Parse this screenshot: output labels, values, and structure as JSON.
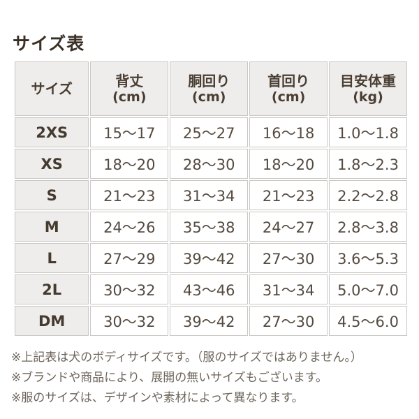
{
  "chart_data": {
    "type": "table",
    "title": "サイズ表",
    "columns": [
      {
        "label": "サイズ",
        "unit": ""
      },
      {
        "label": "背丈",
        "unit": "(cm)"
      },
      {
        "label": "胴回り",
        "unit": "(cm)"
      },
      {
        "label": "首回り",
        "unit": "(cm)"
      },
      {
        "label": "目安体重",
        "unit": "(kg)"
      }
    ],
    "rows": [
      [
        "2XS",
        "15〜17",
        "25〜27",
        "16〜18",
        "1.0〜1.8"
      ],
      [
        "XS",
        "18〜20",
        "28〜30",
        "18〜20",
        "1.8〜2.3"
      ],
      [
        "S",
        "21〜23",
        "31〜34",
        "21〜23",
        "2.2〜2.8"
      ],
      [
        "M",
        "24〜26",
        "35〜38",
        "24〜27",
        "2.8〜3.8"
      ],
      [
        "L",
        "27〜29",
        "39〜42",
        "27〜30",
        "3.6〜5.3"
      ],
      [
        "2L",
        "30〜32",
        "43〜46",
        "31〜34",
        "5.0〜7.0"
      ],
      [
        "DM",
        "30〜32",
        "39〜42",
        "27〜30",
        "4.5〜6.0"
      ]
    ]
  },
  "notes": [
    "※上記表は犬のボディサイズです。（服のサイズではありません。）",
    "※ブランドや商品により、展開の無いサイズもございます。",
    "※服のサイズは、デザインや素材によって異なります。"
  ],
  "colors": {
    "background": "#ffffff",
    "title_text": "#3a2f26",
    "header_bg": "#eeedeb",
    "header_text": "#4a3e33",
    "label_text": "#443a2f",
    "cell_text": "#554a40",
    "border": "#c9c7c4",
    "note_text": "#6e655b"
  }
}
